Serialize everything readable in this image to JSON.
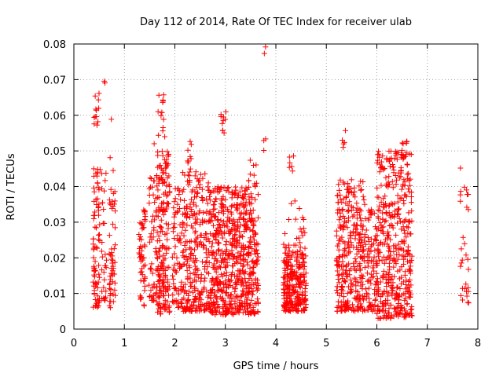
{
  "colors": {
    "points": "#ff0000"
  },
  "chart_data": {
    "type": "scatter",
    "title": "Day 112 of 2014, Rate Of TEC Index for receiver ulab",
    "xlabel": "GPS time / hours",
    "ylabel": "ROTI / TECUs",
    "xlim": [
      0,
      8
    ],
    "ylim": [
      0,
      0.08
    ],
    "xticks": [
      "0",
      "1",
      "2",
      "3",
      "4",
      "5",
      "6",
      "7",
      "8"
    ],
    "yticks": [
      "0",
      "0.01",
      "0.02",
      "0.03",
      "0.04",
      "0.05",
      "0.06",
      "0.07",
      "0.08"
    ],
    "grid": true,
    "marker": "+",
    "series": [
      {
        "name": "ROTI",
        "clusters": [
          {
            "x": [
              0.38,
              0.52
            ],
            "y": [
              0.006,
              0.045
            ],
            "n": 80
          },
          {
            "x": [
              0.4,
              0.5
            ],
            "y": [
              0.057,
              0.067
            ],
            "n": 12
          },
          {
            "x": [
              0.55,
              0.66
            ],
            "y": [
              0.008,
              0.045
            ],
            "n": 30
          },
          {
            "x": [
              0.58,
              0.62
            ],
            "y": [
              0.069,
              0.07
            ],
            "n": 2
          },
          {
            "x": [
              0.7,
              0.82
            ],
            "y": [
              0.006,
              0.049
            ],
            "n": 55
          },
          {
            "x": [
              0.74,
              0.78
            ],
            "y": [
              0.058,
              0.059
            ],
            "n": 1
          },
          {
            "x": [
              1.28,
              1.42
            ],
            "y": [
              0.006,
              0.034
            ],
            "n": 55
          },
          {
            "x": [
              1.48,
              1.6
            ],
            "y": [
              0.008,
              0.043
            ],
            "n": 40
          },
          {
            "x": [
              1.55,
              1.6
            ],
            "y": [
              0.052,
              0.053
            ],
            "n": 1
          },
          {
            "x": [
              1.62,
              1.9
            ],
            "y": [
              0.004,
              0.05
            ],
            "n": 200
          },
          {
            "x": [
              1.65,
              1.8
            ],
            "y": [
              0.053,
              0.068
            ],
            "n": 14
          },
          {
            "x": [
              1.95,
              2.15
            ],
            "y": [
              0.006,
              0.04
            ],
            "n": 70
          },
          {
            "x": [
              2.15,
              2.7
            ],
            "y": [
              0.005,
              0.045
            ],
            "n": 280
          },
          {
            "x": [
              2.25,
              2.35
            ],
            "y": [
              0.046,
              0.053
            ],
            "n": 8
          },
          {
            "x": [
              2.7,
              3.65
            ],
            "y": [
              0.004,
              0.04
            ],
            "n": 620
          },
          {
            "x": [
              2.9,
              3.02
            ],
            "y": [
              0.055,
              0.061
            ],
            "n": 10
          },
          {
            "x": [
              3.45,
              3.62
            ],
            "y": [
              0.04,
              0.048
            ],
            "n": 10
          },
          {
            "x": [
              3.72,
              3.8
            ],
            "y": [
              0.05,
              0.058
            ],
            "n": 3
          },
          {
            "x": [
              3.75,
              3.8
            ],
            "y": [
              0.077,
              0.08
            ],
            "n": 2
          },
          {
            "x": [
              4.15,
              4.6
            ],
            "y": [
              0.005,
              0.022
            ],
            "n": 260
          },
          {
            "x": [
              4.15,
              4.6
            ],
            "y": [
              0.022,
              0.036
            ],
            "n": 25
          },
          {
            "x": [
              4.25,
              4.35
            ],
            "y": [
              0.044,
              0.049
            ],
            "n": 6
          },
          {
            "x": [
              5.2,
              5.75
            ],
            "y": [
              0.005,
              0.042
            ],
            "n": 300
          },
          {
            "x": [
              5.3,
              5.38
            ],
            "y": [
              0.051,
              0.056
            ],
            "n": 5
          },
          {
            "x": [
              5.75,
              6.0
            ],
            "y": [
              0.005,
              0.035
            ],
            "n": 90
          },
          {
            "x": [
              6.0,
              6.7
            ],
            "y": [
              0.003,
              0.05
            ],
            "n": 430
          },
          {
            "x": [
              6.45,
              6.6
            ],
            "y": [
              0.048,
              0.054
            ],
            "n": 10
          },
          {
            "x": [
              7.65,
              7.82
            ],
            "y": [
              0.007,
              0.026
            ],
            "n": 20
          },
          {
            "x": [
              7.65,
              7.82
            ],
            "y": [
              0.033,
              0.047
            ],
            "n": 10
          }
        ]
      }
    ]
  }
}
